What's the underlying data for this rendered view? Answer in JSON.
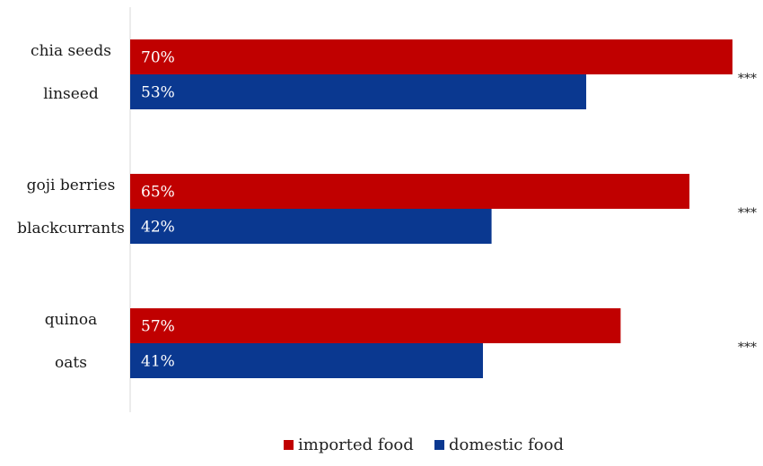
{
  "chart_data": {
    "type": "bar",
    "orientation": "horizontal",
    "title": "",
    "xlabel": "",
    "ylabel": "",
    "xlim": [
      0,
      70
    ],
    "grid": false,
    "legend_position": "bottom",
    "series": [
      {
        "name": "imported food",
        "color": "#c00000"
      },
      {
        "name": "domestic food",
        "color": "#0a3890"
      }
    ],
    "groups": [
      {
        "significance": "***",
        "bars": [
          {
            "category": "chia seeds",
            "series": "imported food",
            "value": 70,
            "label": "70%"
          },
          {
            "category": "linseed",
            "series": "domestic food",
            "value": 53,
            "label": "53%"
          }
        ]
      },
      {
        "significance": "***",
        "bars": [
          {
            "category": "goji berries",
            "series": "imported food",
            "value": 65,
            "label": "65%"
          },
          {
            "category": "blackcurrants",
            "series": "domestic food",
            "value": 42,
            "label": "42%"
          }
        ]
      },
      {
        "significance": "***",
        "bars": [
          {
            "category": "quinoa",
            "series": "imported food",
            "value": 57,
            "label": "57%"
          },
          {
            "category": "oats",
            "series": "domestic food",
            "value": 41,
            "label": "41%"
          }
        ]
      }
    ]
  }
}
